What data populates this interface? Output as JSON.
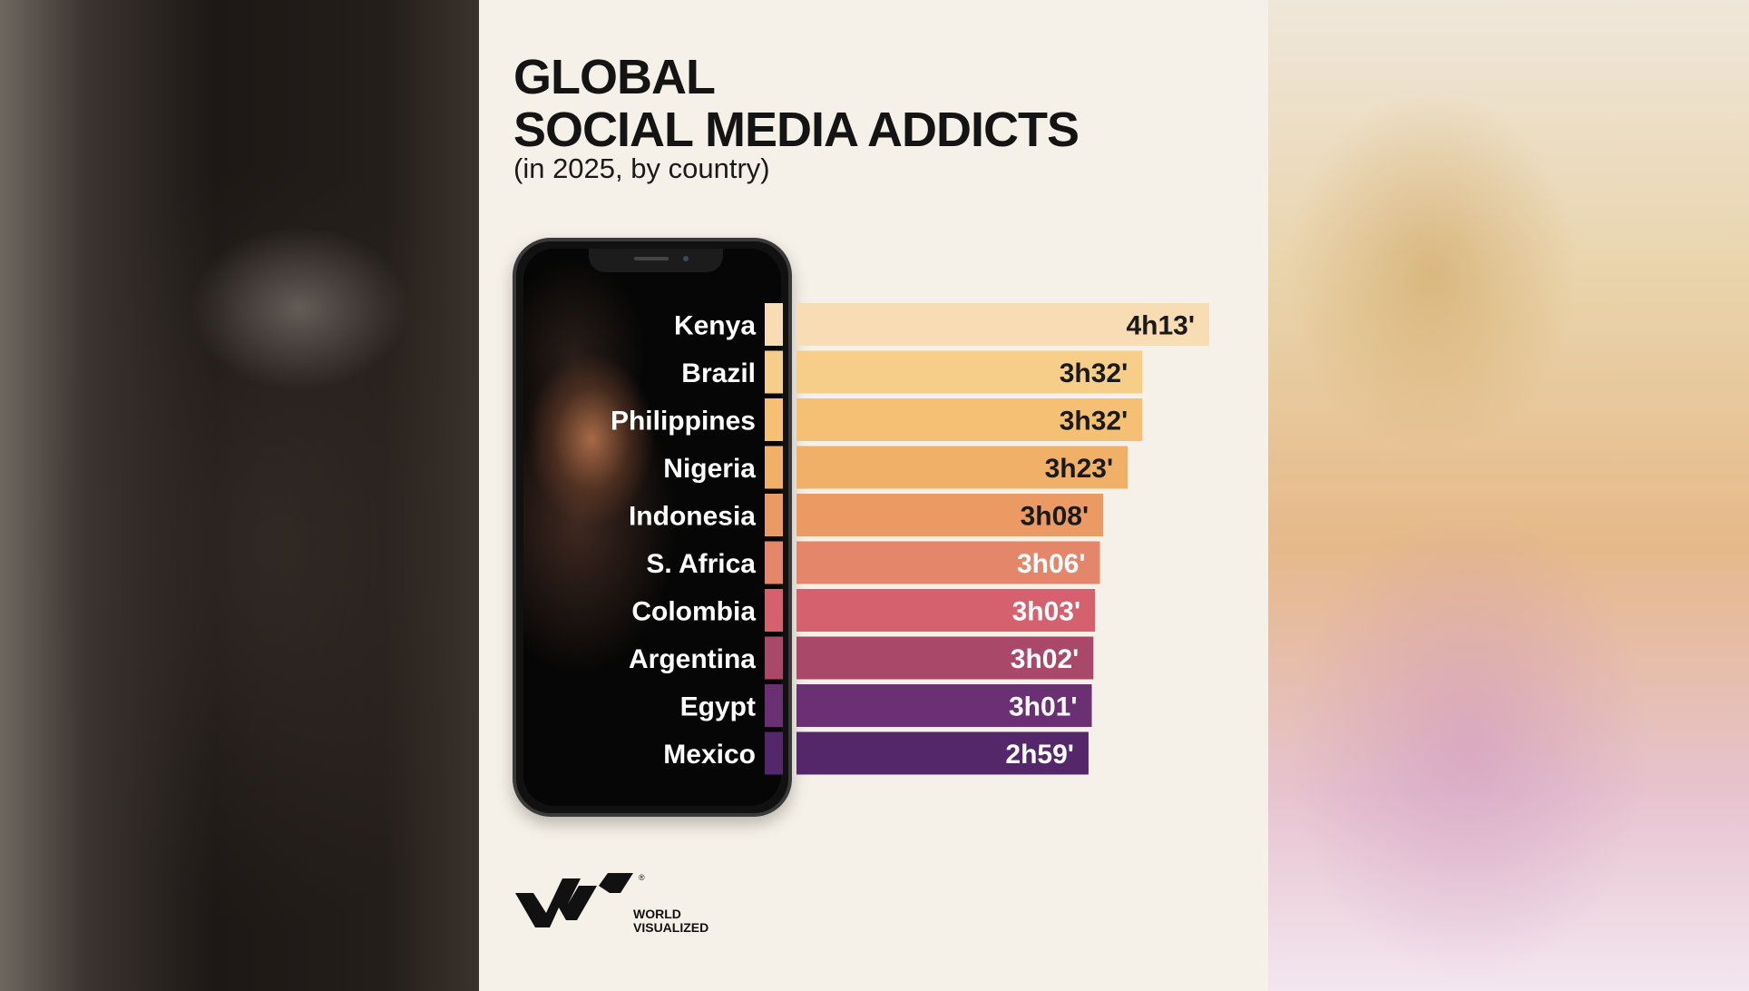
{
  "title_line1": "GLOBAL",
  "title_line2": "SOCIAL MEDIA ADDICTS",
  "subtitle": "(in 2025, by country)",
  "brand": {
    "line1": "WORLD",
    "line2": "VISUALIZED",
    "mark": "®"
  },
  "chart_data": {
    "type": "bar",
    "orientation": "horizontal",
    "categories": [
      "Kenya",
      "Brazil",
      "Philippines",
      "Nigeria",
      "Indonesia",
      "S. Africa",
      "Colombia",
      "Argentina",
      "Egypt",
      "Mexico"
    ],
    "values_minutes": [
      253,
      212,
      212,
      203,
      188,
      186,
      183,
      182,
      181,
      179
    ],
    "data_labels": [
      "4h13'",
      "3h32'",
      "3h32'",
      "3h23'",
      "3h08'",
      "3h06'",
      "3h03'",
      "3h02'",
      "3h01'",
      "2h59'"
    ],
    "colors": [
      "#f7dcb4",
      "#f7cd8a",
      "#f5c073",
      "#f0b068",
      "#ec9a63",
      "#e4866a",
      "#d5616e",
      "#a94868",
      "#6b2f73",
      "#53276a"
    ],
    "label_colors": [
      "#1a1a1a",
      "#1a1a1a",
      "#1a1a1a",
      "#1a1a1a",
      "#1a1a1a",
      "#ffffff",
      "#ffffff",
      "#ffffff",
      "#ffffff",
      "#ffffff"
    ],
    "title": "GLOBAL SOCIAL MEDIA ADDICTS",
    "subtitle": "(in 2025, by country)"
  }
}
